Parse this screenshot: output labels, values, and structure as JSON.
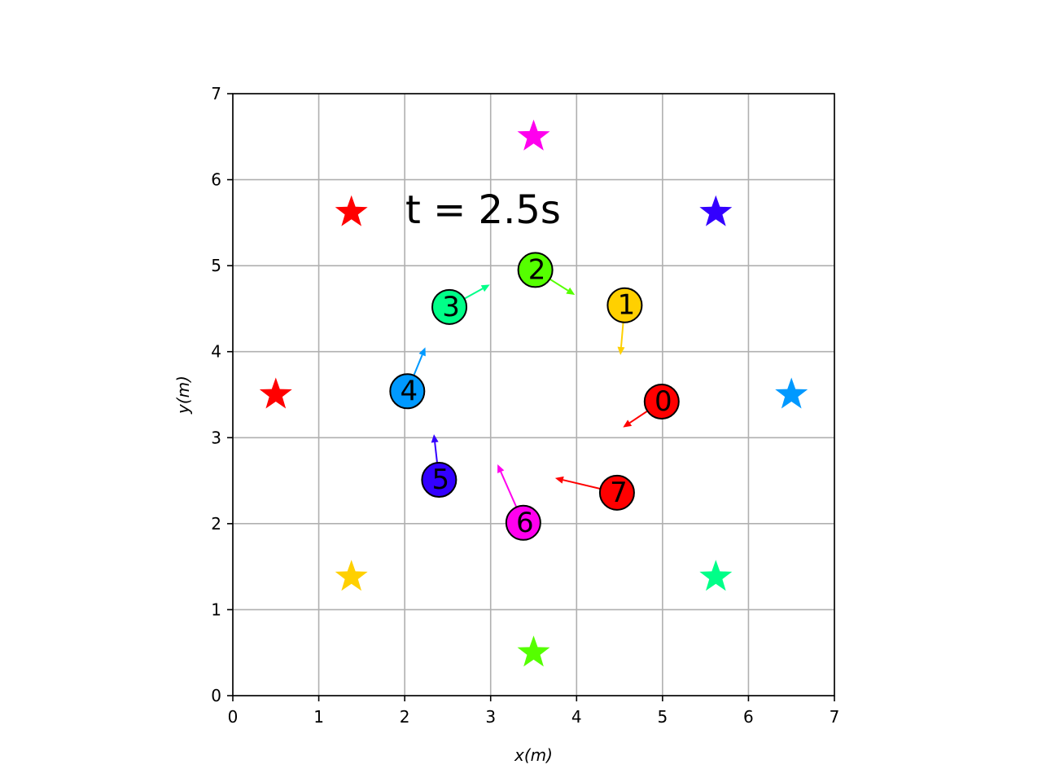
{
  "chart_data": {
    "type": "scatter",
    "xlabel": "x(m)",
    "ylabel": "y(m)",
    "xlim": [
      0,
      7
    ],
    "ylim": [
      0,
      7
    ],
    "x_ticks": [
      "0",
      "1",
      "2",
      "3",
      "4",
      "5",
      "6",
      "7"
    ],
    "y_ticks": [
      "0",
      "1",
      "2",
      "3",
      "4",
      "5",
      "6",
      "7"
    ],
    "grid": true,
    "annotation": "t = 2.5s",
    "goals": [
      {
        "x": 0.5,
        "y": 3.5,
        "color": "#ff0000"
      },
      {
        "x": 1.38,
        "y": 5.62,
        "color": "#ff0000"
      },
      {
        "x": 3.5,
        "y": 6.5,
        "color": "#ff00ee"
      },
      {
        "x": 5.62,
        "y": 5.62,
        "color": "#3300ff"
      },
      {
        "x": 6.5,
        "y": 3.5,
        "color": "#0099ff"
      },
      {
        "x": 5.62,
        "y": 1.38,
        "color": "#00ff88"
      },
      {
        "x": 3.5,
        "y": 0.5,
        "color": "#55ff00"
      },
      {
        "x": 1.38,
        "y": 1.38,
        "color": "#ffd000"
      }
    ],
    "agents": [
      {
        "id": "0",
        "x": 4.99,
        "y": 3.42,
        "vx": -0.45,
        "vy": -0.3,
        "color": "#ff0000"
      },
      {
        "id": "1",
        "x": 4.56,
        "y": 4.54,
        "vx": -0.05,
        "vy": -0.58,
        "color": "#ffd000"
      },
      {
        "id": "2",
        "x": 3.52,
        "y": 4.95,
        "vx": 0.46,
        "vy": -0.29,
        "color": "#55ff00"
      },
      {
        "id": "3",
        "x": 2.52,
        "y": 4.52,
        "vx": 0.47,
        "vy": 0.26,
        "color": "#00ff88"
      },
      {
        "id": "4",
        "x": 2.03,
        "y": 3.54,
        "vx": 0.21,
        "vy": 0.51,
        "color": "#0099ff"
      },
      {
        "id": "5",
        "x": 2.4,
        "y": 2.51,
        "vx": -0.06,
        "vy": 0.53,
        "color": "#3300ff"
      },
      {
        "id": "6",
        "x": 3.38,
        "y": 2.01,
        "vx": -0.3,
        "vy": 0.68,
        "color": "#ff00ee"
      },
      {
        "id": "7",
        "x": 4.47,
        "y": 2.36,
        "vx": -0.72,
        "vy": 0.17,
        "color": "#ff0000"
      }
    ]
  }
}
